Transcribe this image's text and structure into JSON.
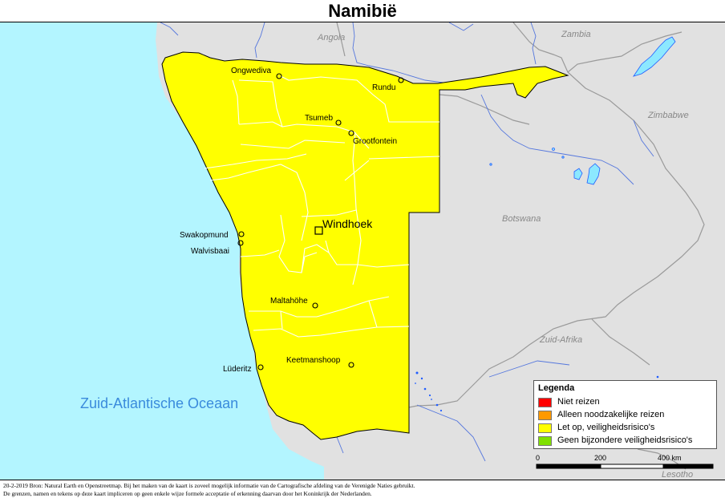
{
  "title": "Namibië",
  "countries": {
    "angola": "Angola",
    "zambia": "Zambia",
    "zimbabwe": "Zimbabwe",
    "botswana": "Botswana",
    "south_africa": "Zuid-Afrika",
    "lesotho": "Lesotho"
  },
  "ocean": "Zuid-Atlantische Oceaan",
  "capital": "Windhoek",
  "cities": {
    "ongwediva": "Ongwediva",
    "rundu": "Rundu",
    "tsumeb": "Tsumeb",
    "grootfontein": "Grootfontein",
    "swakopmund": "Swakopmund",
    "walvisbaai": "Walvisbaai",
    "maltahohe": "Maltahöhe",
    "keetmanshoop": "Keetmanshoop",
    "luderitz": "Lüderitz"
  },
  "legend": {
    "title": "Legenda",
    "items": [
      {
        "label": "Niet reizen",
        "color": "#ff0000"
      },
      {
        "label": "Alleen noodzakelijke reizen",
        "color": "#ff9900"
      },
      {
        "label": "Let op, veiligheidsrisico's",
        "color": "#ffff00"
      },
      {
        "label": "Geen bijzondere veiligheidsrisico's",
        "color": "#80e000"
      }
    ]
  },
  "scale": {
    "zero": "0",
    "mid": "200",
    "end": "400 km"
  },
  "footer": {
    "line1": "20-2-2019 Bron: Natural Earth en Openstreetmap. Bij het maken van de kaart is zoveel mogelijk informatie van de Cartografische afdeling van de Verenigde Naties gebruikt.",
    "line2": "De grenzen, namen en tekens op deze kaart impliceren op geen enkele wijze formele acceptatie of erkenning daarvan door het Koninkrijk der Nederlanden."
  },
  "colors": {
    "namibia_fill": "#ffff00",
    "neighbor_fill": "#e1e1e1",
    "ocean": "#b3f5ff",
    "water_blue": "#1f5cff",
    "lake_fill": "#8ce8ff"
  }
}
